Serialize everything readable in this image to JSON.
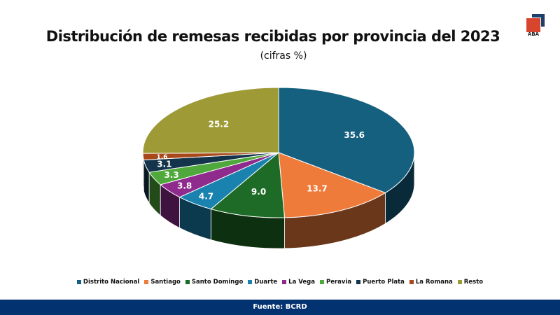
{
  "chart_data": {
    "type": "pie",
    "title": "Distribución de remesas recibidas por provincia del 2023",
    "subtitle": "(cifras %)",
    "categories": [
      "Distrito Nacional",
      "Santiago",
      "Santo Domingo",
      "Duarte",
      "La Vega",
      "Peravia",
      "Puerto Plata",
      "La Romana",
      "Resto"
    ],
    "values": [
      35.6,
      13.7,
      9.0,
      4.7,
      3.8,
      3.3,
      3.1,
      1.6,
      25.2
    ],
    "labels": [
      "35.6",
      "13.7",
      "9.0",
      "4.7",
      "3.8",
      "3.3",
      "3.1",
      "1.6",
      "25.2"
    ],
    "colors": [
      "#15607f",
      "#ee7b3a",
      "#1d6b26",
      "#1a82ae",
      "#8e2b8c",
      "#4ea83b",
      "#13344b",
      "#a9491b",
      "#9e9a36"
    ],
    "legend_position": "bottom"
  },
  "logo": {
    "text": "ABA"
  },
  "footer": {
    "source": "Fuente: BCRD"
  }
}
